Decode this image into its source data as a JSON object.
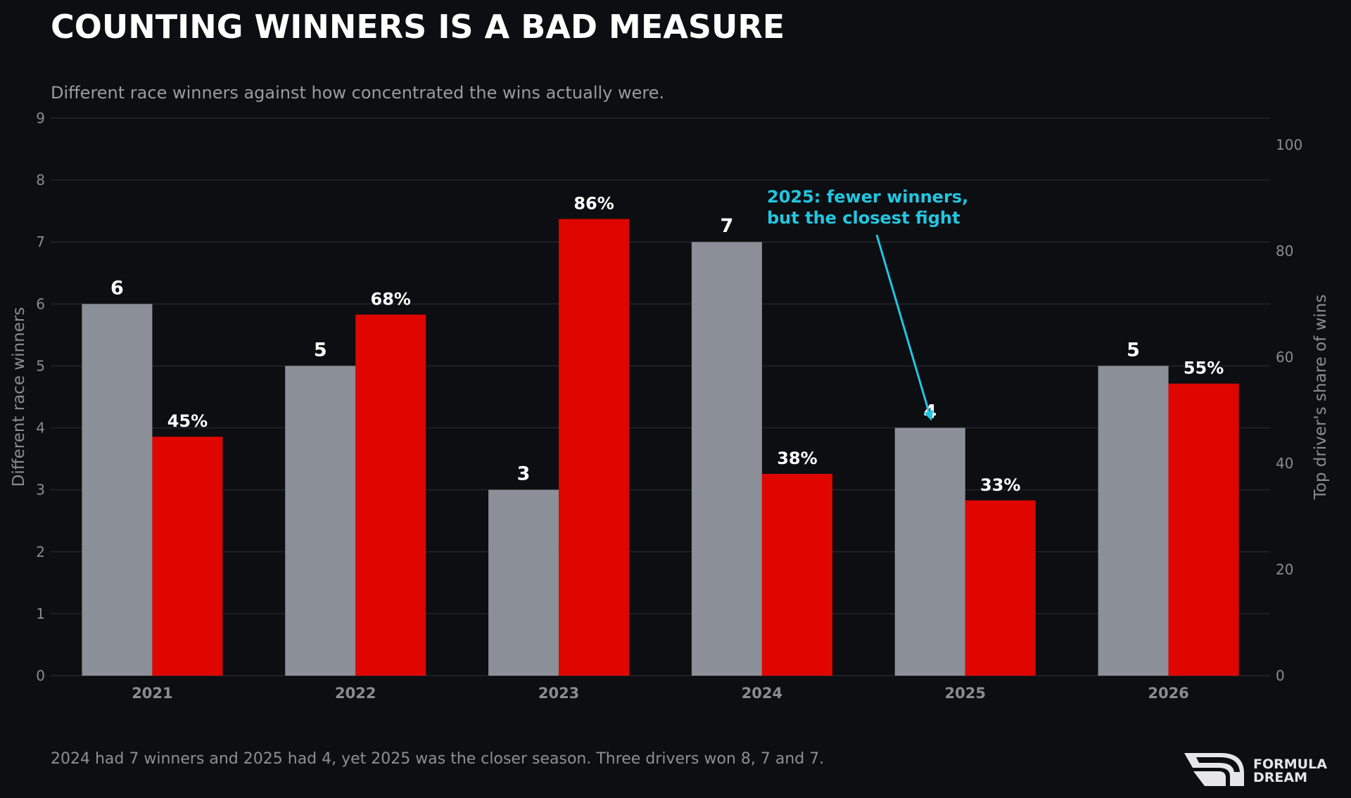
{
  "chart_data": {
    "type": "bar",
    "title": "COUNTING WINNERS IS A BAD MEASURE",
    "subtitle": "Different race winners against how concentrated the wins actually were.",
    "categories": [
      "2021",
      "2022",
      "2023",
      "2024",
      "2025",
      "2026"
    ],
    "series": [
      {
        "axis": "left",
        "color": "#8b8f97",
        "values": [
          6,
          5,
          3,
          7,
          4,
          5
        ],
        "labels": [
          "6",
          "5",
          "3",
          "7",
          "4",
          "5"
        ]
      },
      {
        "axis": "right",
        "color": "#e00600",
        "values": [
          45,
          68,
          86,
          38,
          33,
          55
        ],
        "labels": [
          "45%",
          "68%",
          "86%",
          "38%",
          "33%",
          "55%"
        ]
      }
    ],
    "ylabel": "Different race winners",
    "ylim": [
      0,
      9
    ],
    "yticks": [
      "0",
      "1",
      "2",
      "3",
      "4",
      "5",
      "6",
      "7",
      "8",
      "9"
    ],
    "y2label": "Top driver's share of wins",
    "y2lim": [
      0,
      105
    ],
    "y2ticks": [
      "0",
      "20",
      "40",
      "60",
      "80",
      "100"
    ],
    "grid": true,
    "annotation": {
      "lines": [
        "2025: fewer winners,",
        "but the closest fight"
      ],
      "target_category": "2025",
      "target_value": 4,
      "color": "#22c6e0"
    },
    "footnote": "2024 had 7 winners and 2025 had 4, yet 2025 was the closer season. Three drivers won 8, 7 and 7."
  },
  "logo": {
    "line1": "FORMULA",
    "line2": "DREAM"
  }
}
